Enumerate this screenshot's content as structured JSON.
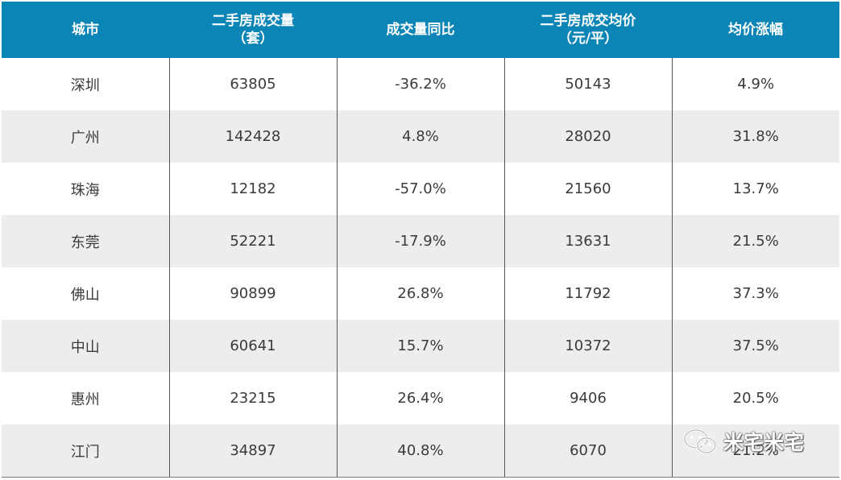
{
  "chart_data": {
    "type": "table",
    "columns": [
      "城市",
      "二手房成交量\n（套）",
      "成交量同比",
      "二手房成交均价\n（元/平）",
      "均价涨幅"
    ],
    "header_lines": [
      [
        "城市"
      ],
      [
        "二手房成交量",
        "（套）"
      ],
      [
        "成交量同比"
      ],
      [
        "二手房成交均价",
        "（元/平）"
      ],
      [
        "均价涨幅"
      ]
    ],
    "rows": [
      [
        "深圳",
        "63805",
        "-36.2%",
        "50143",
        "4.9%"
      ],
      [
        "广州",
        "142428",
        "4.8%",
        "28020",
        "31.8%"
      ],
      [
        "珠海",
        "12182",
        "-57.0%",
        "21560",
        "13.7%"
      ],
      [
        "东莞",
        "52221",
        "-17.9%",
        "13631",
        "21.5%"
      ],
      [
        "佛山",
        "90899",
        "26.8%",
        "11792",
        "37.3%"
      ],
      [
        "中山",
        "60641",
        "15.7%",
        "10372",
        "37.5%"
      ],
      [
        "惠州",
        "23215",
        "26.4%",
        "9406",
        "20.5%"
      ],
      [
        "江门",
        "34897",
        "40.8%",
        "6070",
        "21.2%"
      ]
    ],
    "colors": {
      "header_bg": "#0b84b6",
      "header_text": "#ffffff",
      "stripe": "#ededed",
      "text": "#3a3a3a"
    }
  },
  "watermark": {
    "text": "米宅米宅",
    "icon": "wechat-icon"
  }
}
